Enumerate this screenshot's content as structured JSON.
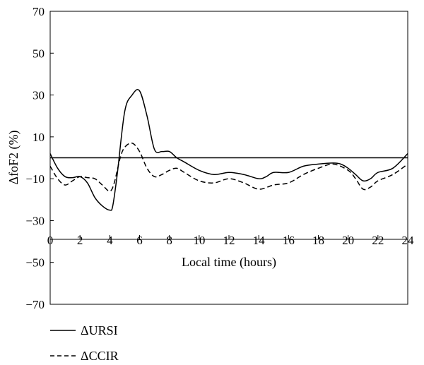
{
  "chart_data": {
    "type": "line",
    "xlabel": "Local time (hours)",
    "ylabel": "ΔfoF2 (%)",
    "xlim": [
      0,
      24
    ],
    "ylim": [
      -70,
      70
    ],
    "x_ticks": [
      0,
      2,
      4,
      6,
      8,
      10,
      12,
      14,
      16,
      18,
      20,
      22,
      24
    ],
    "y_ticks": [
      70,
      50,
      30,
      10,
      -10,
      -30,
      -50,
      -70
    ],
    "x_tick_labels": [
      "0",
      "2",
      "4",
      "6",
      "8",
      "10",
      "12",
      "14",
      "16",
      "18",
      "20",
      "22",
      "24"
    ],
    "y_tick_labels": [
      "70",
      "50",
      "30",
      "10",
      "−10",
      "−30",
      "−50",
      "−70"
    ],
    "reference_line_y": 0,
    "legend_position": "bottom-left",
    "series": [
      {
        "name": "ΔURSI",
        "style": "solid",
        "x": [
          0,
          0.5,
          1,
          1.5,
          2,
          2.5,
          3,
          3.5,
          4,
          4.2,
          4.5,
          5,
          5.5,
          6,
          6.5,
          7,
          7.5,
          8,
          8.5,
          9,
          10,
          11,
          12,
          13,
          14,
          14.5,
          15,
          16,
          17,
          18,
          19,
          19.5,
          20,
          20.5,
          21,
          21.5,
          22,
          23,
          24
        ],
        "y": [
          2,
          -5,
          -9,
          -9.5,
          -9,
          -12,
          -19,
          -23,
          -25,
          -23,
          -8,
          22,
          30,
          32,
          20,
          4,
          3,
          3,
          0,
          -2,
          -6,
          -8,
          -7,
          -8,
          -10,
          -9,
          -7,
          -7,
          -4,
          -3,
          -2.5,
          -3,
          -5,
          -8,
          -11,
          -10,
          -7,
          -5,
          2
        ]
      },
      {
        "name": "ΔCCIR",
        "style": "dashed",
        "x": [
          0,
          0.5,
          1,
          1.5,
          2,
          2.5,
          3,
          3.5,
          4,
          4.3,
          4.7,
          5,
          5.5,
          6,
          6.5,
          7,
          7.5,
          8,
          8.5,
          9,
          10,
          11,
          12,
          13,
          14,
          15,
          16,
          17,
          18,
          19,
          20,
          20.5,
          21,
          21.5,
          22,
          23,
          24
        ],
        "y": [
          -4,
          -10,
          -13,
          -11,
          -9,
          -9.5,
          -10,
          -13,
          -16,
          -12,
          0,
          5,
          7,
          3,
          -5,
          -9,
          -8,
          -6,
          -5,
          -7,
          -11,
          -12,
          -10,
          -12,
          -15,
          -13,
          -12,
          -8,
          -5,
          -3,
          -6,
          -10,
          -15,
          -14,
          -11,
          -8,
          -3
        ]
      }
    ]
  }
}
